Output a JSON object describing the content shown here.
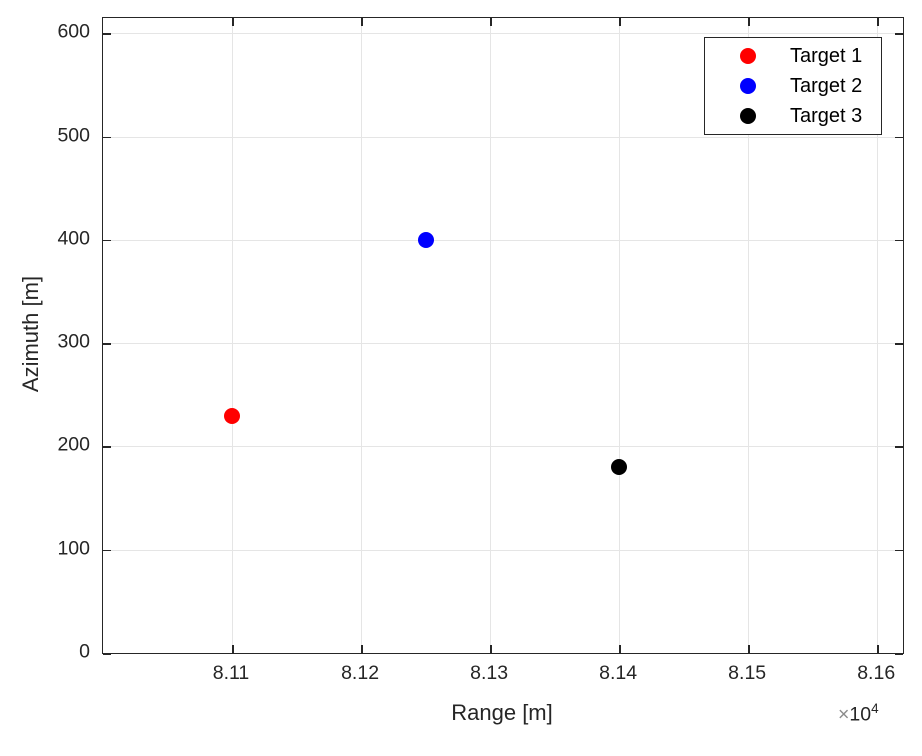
{
  "figure": {
    "background": "#ffffff",
    "axis_color": "#262626",
    "grid_color": "#e5e5e5",
    "tick_label_color": "#262626",
    "multiplier": {
      "times": "×",
      "base": "10",
      "exponent": "4"
    }
  },
  "chart_data": {
    "type": "scatter",
    "title": "",
    "xlabel": "Range [m]",
    "ylabel": "Azimuth [m]",
    "xlim": [
      81000,
      81620
    ],
    "ylim": [
      0,
      615
    ],
    "grid": true,
    "x_ticks": [
      81100,
      81200,
      81300,
      81400,
      81500,
      81600
    ],
    "x_tick_labels": [
      "8.11",
      "8.12",
      "8.13",
      "8.14",
      "8.15",
      "8.16"
    ],
    "y_ticks": [
      0,
      100,
      200,
      300,
      400,
      500,
      600
    ],
    "y_tick_labels": [
      "0",
      "100",
      "200",
      "300",
      "400",
      "500",
      "600"
    ],
    "x_axis_multiplier": "×10^4",
    "legend": {
      "position": "top-right",
      "entries": [
        "Target 1",
        "Target 2",
        "Target 3"
      ]
    },
    "series": [
      {
        "name": "Target 1",
        "color": "#ff0000",
        "marker": "filled-circle",
        "points": [
          {
            "x": 81100,
            "y": 230
          }
        ]
      },
      {
        "name": "Target 2",
        "color": "#0000ff",
        "marker": "filled-circle",
        "points": [
          {
            "x": 81250,
            "y": 400
          }
        ]
      },
      {
        "name": "Target 3",
        "color": "#000000",
        "marker": "filled-circle",
        "points": [
          {
            "x": 81400,
            "y": 180
          }
        ]
      }
    ]
  }
}
